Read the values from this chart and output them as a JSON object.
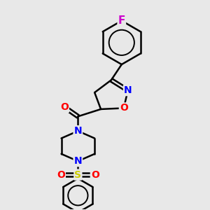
{
  "bg_color": "#e8e8e8",
  "atom_colors": {
    "C": "#000000",
    "N": "#0000ff",
    "O": "#ff0000",
    "F": "#cc00cc",
    "S": "#cccc00",
    "default": "#000000"
  },
  "bond_color": "#000000",
  "bond_width": 1.8,
  "font_size_atom": 10
}
